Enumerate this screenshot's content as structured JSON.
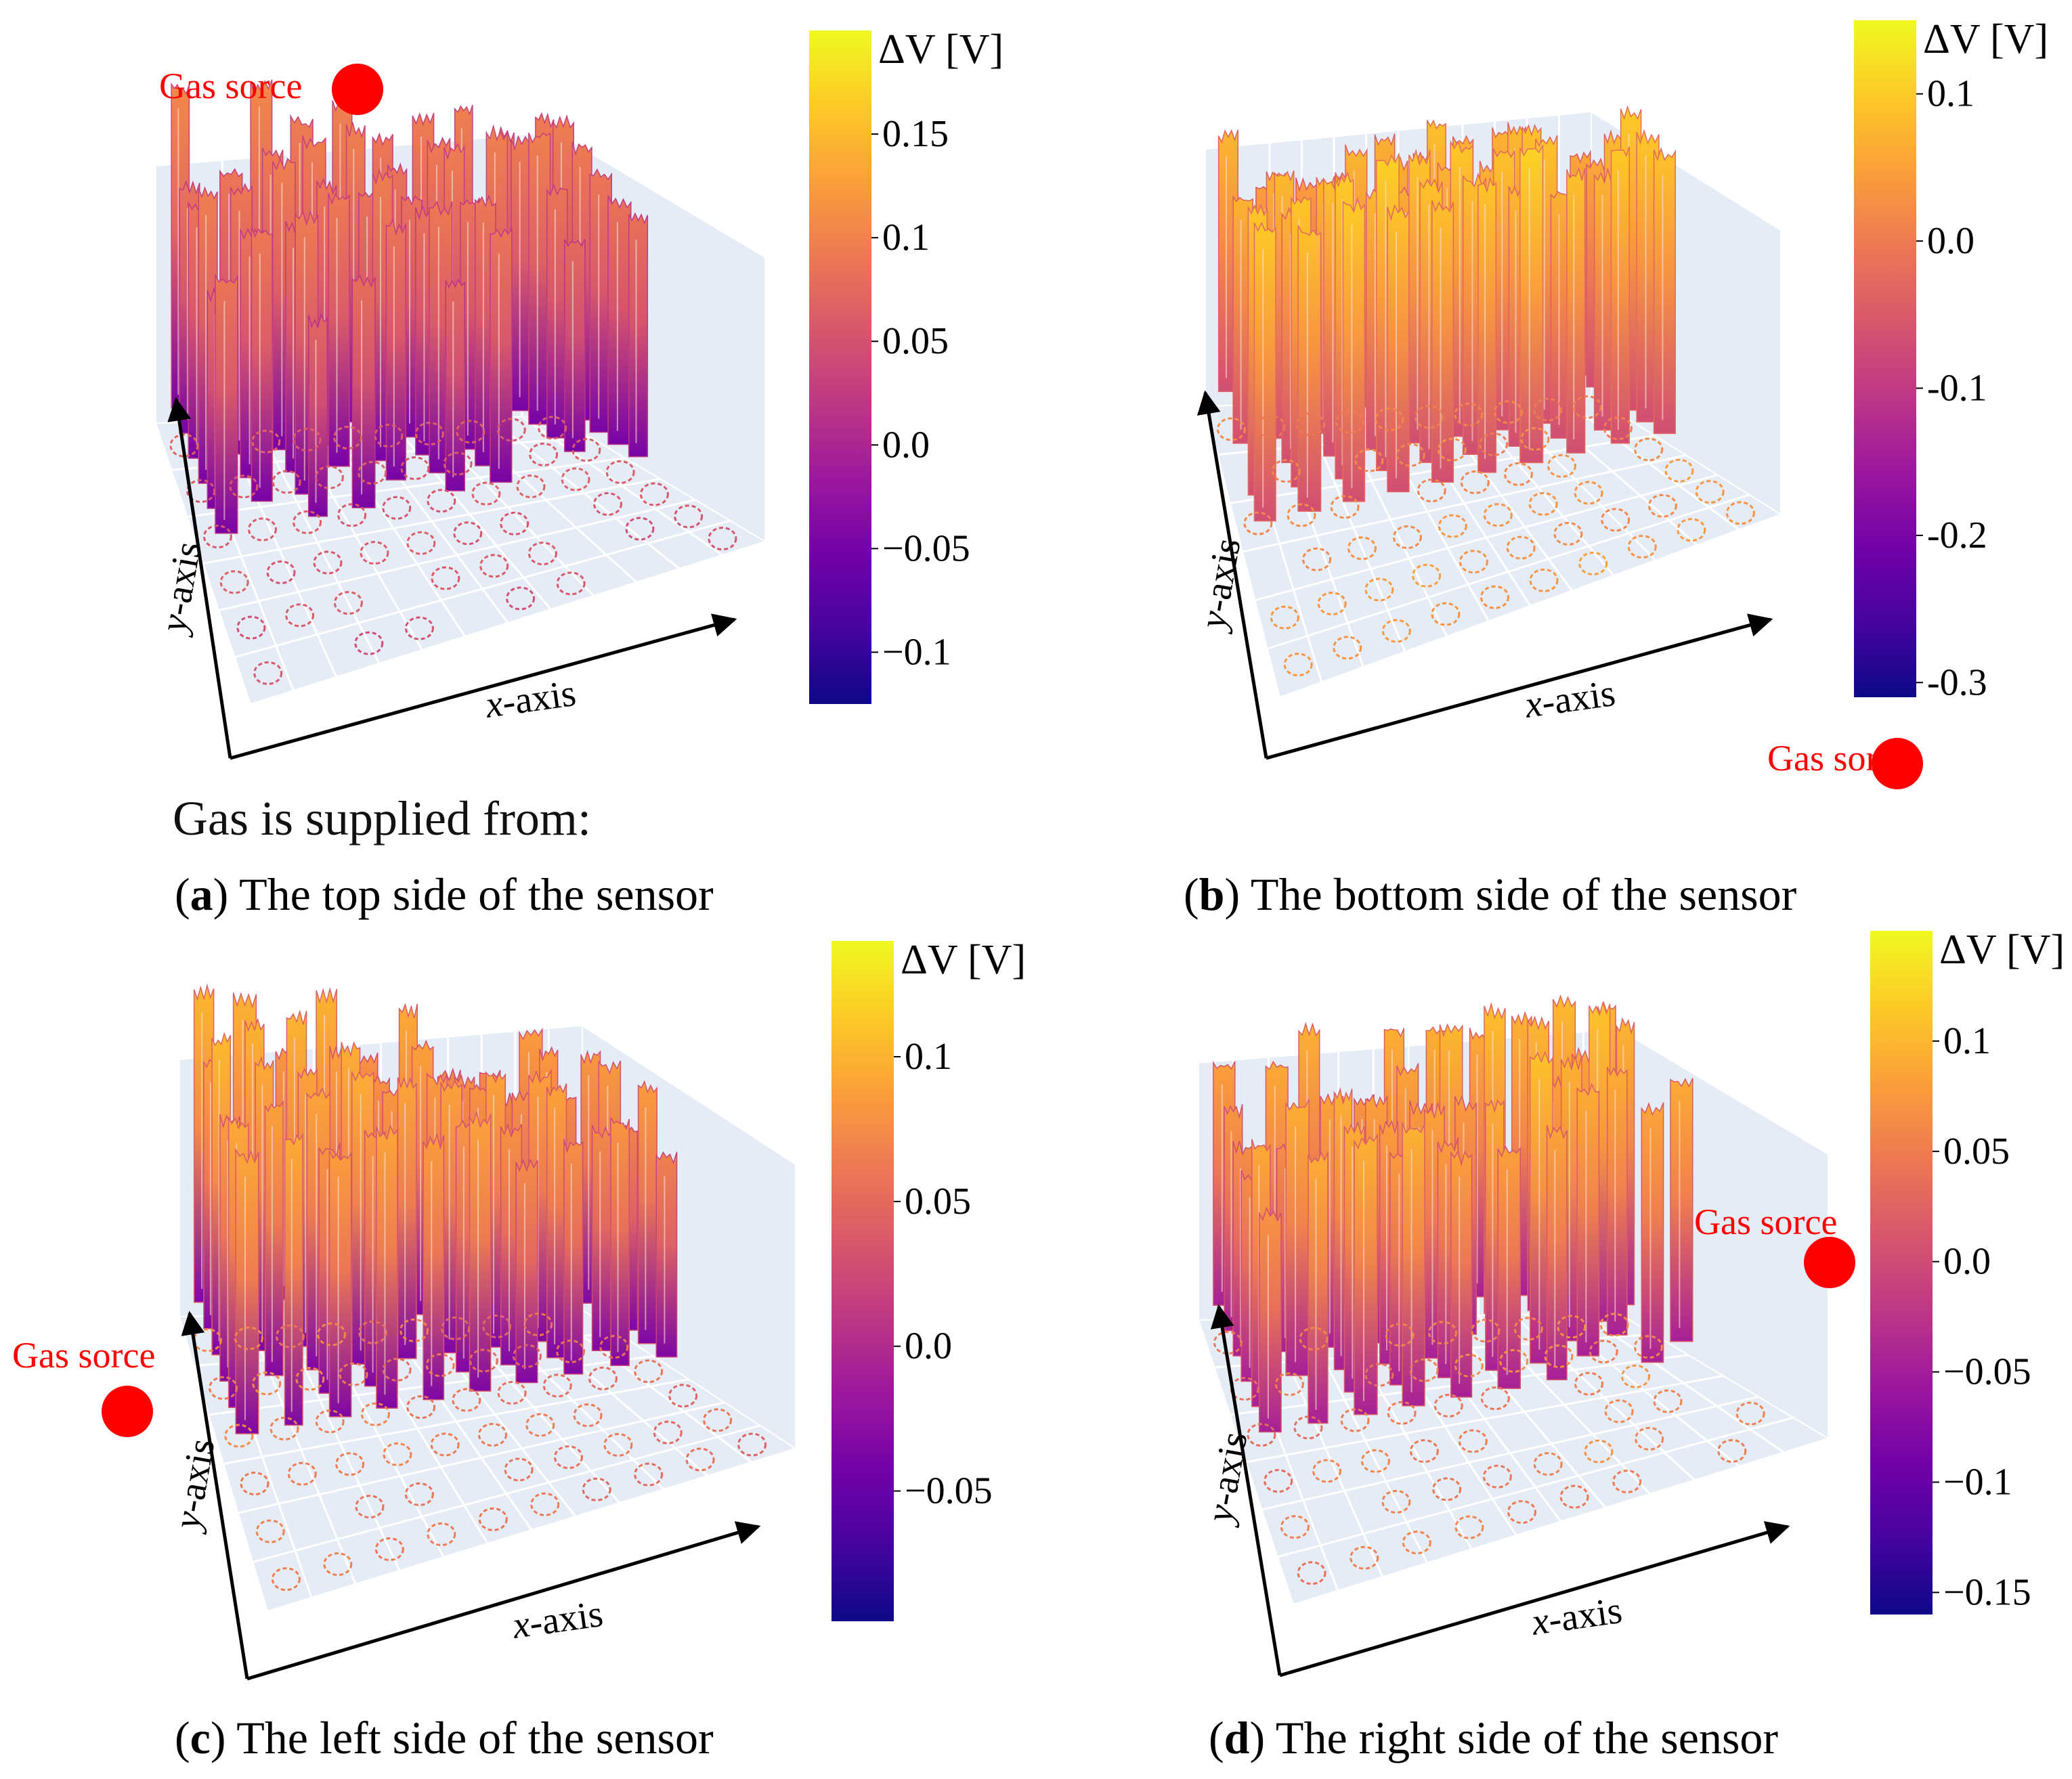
{
  "intro_text": "Gas is supplied from:",
  "chart_data": [
    {
      "type": "surface3d",
      "panel_letter": "a",
      "caption": "The top side of the sensor",
      "colorbar": {
        "label": "ΔV [V]",
        "ticks": [
          "0.15",
          "0.1",
          "0.05",
          "0.0",
          "−0.05",
          "−0.1"
        ],
        "range": [
          -0.125,
          0.2
        ],
        "colormap": "plasma"
      },
      "xlabel_italic": "x",
      "xlabel_rest": "-axis",
      "ylabel_italic": "y",
      "ylabel_rest": "-axis",
      "gas_source": {
        "label": "Gas sorce",
        "position": "top-left"
      },
      "gas_side": "top",
      "peak_range": [
        0.05,
        0.11
      ]
    },
    {
      "type": "surface3d",
      "panel_letter": "b",
      "caption": "The bottom side of the sensor",
      "colorbar": {
        "label": "ΔV [V]",
        "ticks": [
          "0.1",
          "0.0",
          "-0.1",
          "-0.2",
          "-0.3"
        ],
        "range": [
          -0.31,
          0.15
        ],
        "colormap": "plasma"
      },
      "xlabel_italic": "x",
      "xlabel_rest": "-axis",
      "ylabel_italic": "y",
      "ylabel_rest": "-axis",
      "gas_source": {
        "label": "Gas sorce",
        "position": "bottom-right"
      },
      "gas_side": "bottom",
      "peak_range": [
        0.0,
        0.12
      ]
    },
    {
      "type": "surface3d",
      "panel_letter": "c",
      "caption": "The left side of the sensor",
      "colorbar": {
        "label": "ΔV [V]",
        "ticks": [
          "0.1",
          "0.05",
          "0.0",
          "−0.05"
        ],
        "range": [
          -0.095,
          0.14
        ],
        "colormap": "plasma"
      },
      "xlabel_italic": "x",
      "xlabel_rest": "-axis",
      "ylabel_italic": "y",
      "ylabel_rest": "-axis",
      "gas_source": {
        "label": "Gas sorce",
        "position": "left"
      },
      "gas_side": "left",
      "peak_range": [
        0.04,
        0.11
      ]
    },
    {
      "type": "surface3d",
      "panel_letter": "d",
      "caption": "The right side of the sensor",
      "colorbar": {
        "label": "ΔV [V]",
        "ticks": [
          "0.1",
          "0.05",
          "0.0",
          "−0.05",
          "−0.1",
          "−0.15"
        ],
        "range": [
          -0.16,
          0.15
        ],
        "colormap": "plasma"
      },
      "xlabel_italic": "x",
      "xlabel_rest": "-axis",
      "ylabel_italic": "y",
      "ylabel_rest": "-axis",
      "gas_source": {
        "label": "Gas sorce",
        "position": "top-right"
      },
      "gas_side": "right",
      "peak_range": [
        0.03,
        0.12
      ]
    }
  ]
}
